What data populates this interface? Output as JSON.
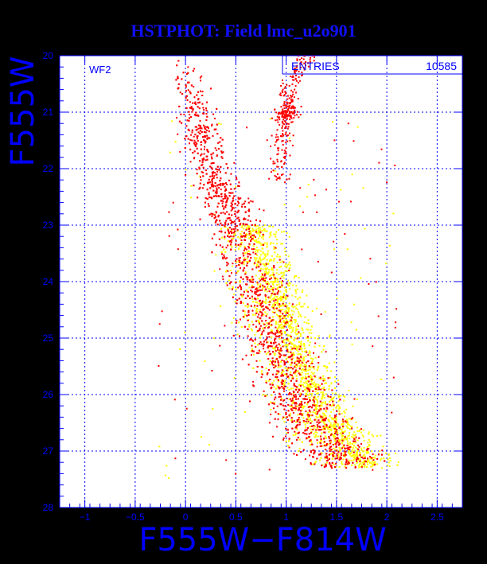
{
  "title": "HSTPHOT: Field lmc_u2o901",
  "colors": {
    "frame": "#0000ff",
    "axis_text": "#0000ff",
    "background": "#000000",
    "panel": "#ffffff",
    "primary_points": "#ff0000",
    "secondary_points": "#ffff00"
  },
  "chart_data": {
    "type": "scatter",
    "title": "HSTPHOT: Field lmc_u2o901",
    "xlabel": "F555W−F814W",
    "ylabel": "F555W",
    "xlim": [
      -1.25,
      2.75
    ],
    "ylim": [
      28,
      20
    ],
    "y_inverted": true,
    "grid": true,
    "x_ticks": [
      -1,
      -0.5,
      0,
      0.5,
      1,
      1.5,
      2,
      2.5
    ],
    "x_tick_labels": [
      "−1",
      "−0.5",
      "0",
      "0.5",
      "1",
      "1.5",
      "2",
      "2.5"
    ],
    "y_ticks": [
      20,
      21,
      22,
      23,
      24,
      25,
      26,
      27,
      28
    ],
    "y_tick_labels": [
      "20",
      "21",
      "22",
      "23",
      "24",
      "25",
      "26",
      "27",
      "28"
    ],
    "panel_label": "WF2",
    "stats": {
      "label": "ENTRIES",
      "value": "10585"
    },
    "series_colors": [
      "red",
      "yellow"
    ],
    "features": {
      "main_sequence_ridge": [
        {
          "y": 20.0,
          "x": 0.01
        },
        {
          "y": 21.0,
          "x": 0.1
        },
        {
          "y": 22.0,
          "x": 0.25
        },
        {
          "y": 23.0,
          "x": 0.5
        },
        {
          "y": 24.0,
          "x": 0.68
        },
        {
          "y": 25.0,
          "x": 0.85
        },
        {
          "y": 25.8,
          "x": 1.05
        },
        {
          "y": 26.5,
          "x": 1.25
        },
        {
          "y": 27.2,
          "x": 1.6
        }
      ],
      "giant_branch_ridge": [
        {
          "y": 20.0,
          "x": 1.2
        },
        {
          "y": 20.5,
          "x": 1.05
        },
        {
          "y": 21.0,
          "x": 1.0
        },
        {
          "y": 22.0,
          "x": 0.93
        }
      ],
      "red_clump": {
        "x": 1.0,
        "y": 21.0
      }
    }
  }
}
